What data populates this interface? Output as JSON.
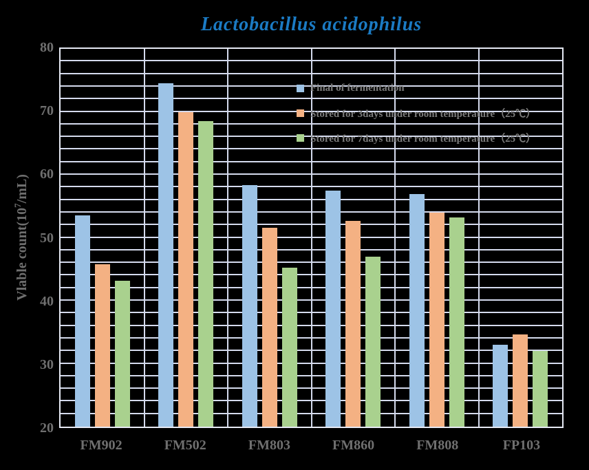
{
  "title": "Lactobacillus acidophilus",
  "y_axis_title": {
    "prefix": "Vlable count(10",
    "sup": "7",
    "suffix": "/mL)"
  },
  "colors": {
    "title": "#1B7BC4",
    "axis_text": "#6F6F6F",
    "legend_text": "#7C7C7C",
    "gridline": "#D5DBEE",
    "background": "#000000"
  },
  "chart_data": {
    "type": "bar",
    "title": "Lactobacillus acidophilus",
    "ylabel": "Vlable count(10^7/mL)",
    "xlabel": "",
    "categories": [
      "FM902",
      "FM502",
      "FM803",
      "FM860",
      "FM808",
      "FP103"
    ],
    "series": [
      {
        "name": "Final of fermentation",
        "color": "#9DC3E6",
        "values": [
          53.5,
          74.5,
          58.4,
          57.5,
          56.9,
          33.0
        ]
      },
      {
        "name": "Stored for 3days under room temperature（25℃）",
        "color": "#F4B183",
        "values": [
          45.8,
          70.0,
          51.6,
          52.7,
          54.0,
          34.7
        ]
      },
      {
        "name": "Stored for 7days under room temperature（25℃）",
        "color": "#A9D18E",
        "values": [
          43.2,
          68.5,
          45.2,
          47.0,
          53.2,
          32.0
        ]
      }
    ],
    "ylim": [
      20,
      80
    ],
    "y_major_step": 10,
    "y_minor_step": 2,
    "yticks": [
      "80",
      "70",
      "60",
      "50",
      "40",
      "30",
      "20"
    ],
    "grid": true,
    "legend_position": "inside-top-right"
  }
}
